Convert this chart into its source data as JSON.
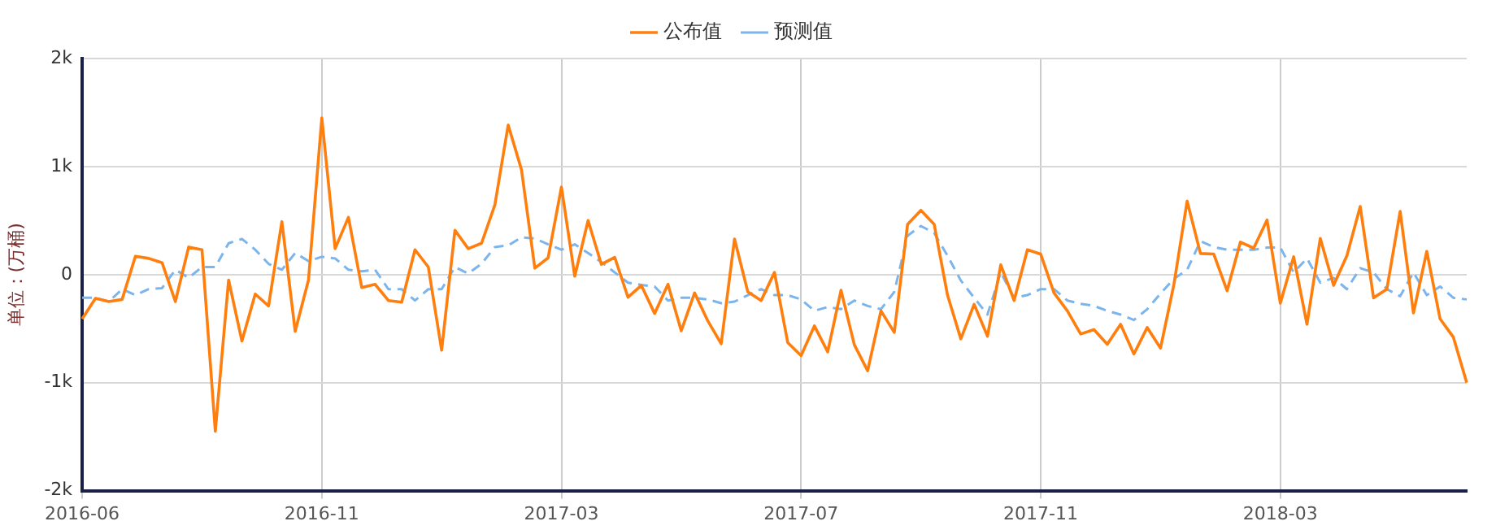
{
  "chart_data": {
    "type": "line",
    "ylabel": "单位：(万桶)",
    "categories": [
      "2016-06",
      null,
      null,
      null,
      null,
      null,
      null,
      null,
      null,
      null,
      null,
      null,
      null,
      null,
      null,
      null,
      null,
      null,
      "2016-11",
      null,
      null,
      null,
      null,
      null,
      null,
      null,
      null,
      null,
      null,
      null,
      null,
      null,
      null,
      null,
      null,
      null,
      "2017-03",
      null,
      null,
      null,
      null,
      null,
      null,
      null,
      null,
      null,
      null,
      null,
      null,
      null,
      null,
      null,
      null,
      null,
      "2017-07",
      null,
      null,
      null,
      null,
      null,
      null,
      null,
      null,
      null,
      null,
      null,
      null,
      null,
      null,
      null,
      null,
      null,
      "2017-11",
      null,
      null,
      null,
      null,
      null,
      null,
      null,
      null,
      null,
      null,
      null,
      null,
      null,
      null,
      null,
      null,
      null,
      "2018-03",
      null,
      null,
      null,
      null,
      null,
      null,
      null,
      null,
      null,
      null,
      null,
      null,
      null,
      null
    ],
    "series": [
      {
        "name": "公布值",
        "color": "#ff7f0e",
        "line_style": "solid",
        "values": [
          -410,
          -220,
          -250,
          -230,
          170,
          150,
          110,
          -250,
          255,
          230,
          -1450,
          -50,
          -615,
          -180,
          -290,
          490,
          -525,
          -50,
          1450,
          240,
          530,
          -120,
          -90,
          -240,
          -255,
          230,
          70,
          -700,
          410,
          240,
          290,
          645,
          1385,
          970,
          60,
          155,
          810,
          -15,
          500,
          95,
          160,
          -210,
          -100,
          -360,
          -90,
          -520,
          -170,
          -430,
          -640,
          330,
          -160,
          -240,
          20,
          -630,
          -750,
          -475,
          -715,
          -145,
          -650,
          -890,
          -335,
          -535,
          465,
          595,
          465,
          -190,
          -595,
          -275,
          -570,
          90,
          -240,
          230,
          190,
          -170,
          -335,
          -550,
          -510,
          -645,
          -460,
          -735,
          -490,
          -680,
          -95,
          680,
          195,
          190,
          -150,
          300,
          245,
          505,
          -265,
          165,
          -460,
          335,
          -100,
          175,
          630,
          -215,
          -135,
          585,
          -355,
          215,
          -410,
          -580,
          -1000
        ]
      },
      {
        "name": "预测值",
        "color": "#7cb5ec",
        "line_style": "dashed",
        "values": [
          -215,
          -215,
          -250,
          -135,
          -190,
          -135,
          -125,
          45,
          -30,
          70,
          70,
          290,
          330,
          230,
          100,
          45,
          200,
          125,
          165,
          150,
          45,
          30,
          45,
          -135,
          -135,
          -240,
          -135,
          -135,
          70,
          10,
          100,
          255,
          270,
          345,
          335,
          280,
          230,
          280,
          200,
          115,
          20,
          -75,
          -95,
          -110,
          -240,
          -215,
          -215,
          -230,
          -265,
          -250,
          -190,
          -135,
          -190,
          -190,
          -230,
          -335,
          -300,
          -320,
          -240,
          -290,
          -320,
          -160,
          360,
          450,
          385,
          175,
          -55,
          -215,
          -370,
          20,
          -215,
          -190,
          -135,
          -135,
          -240,
          -270,
          -290,
          -335,
          -370,
          -420,
          -320,
          -175,
          -40,
          45,
          310,
          255,
          230,
          230,
          230,
          250,
          250,
          20,
          150,
          -75,
          -30,
          -135,
          60,
          20,
          -135,
          -200,
          20,
          -190,
          -110,
          -215,
          -230
        ]
      }
    ],
    "ylim": [
      -2000,
      2000
    ],
    "yticks": [
      {
        "value": -2000,
        "label": "-2k"
      },
      {
        "value": -1000,
        "label": "-1k"
      },
      0,
      {
        "value": 1000,
        "label": "1k"
      },
      {
        "value": 2000,
        "label": "2k"
      }
    ],
    "grid": true,
    "legend": "top",
    "marker": "none"
  }
}
